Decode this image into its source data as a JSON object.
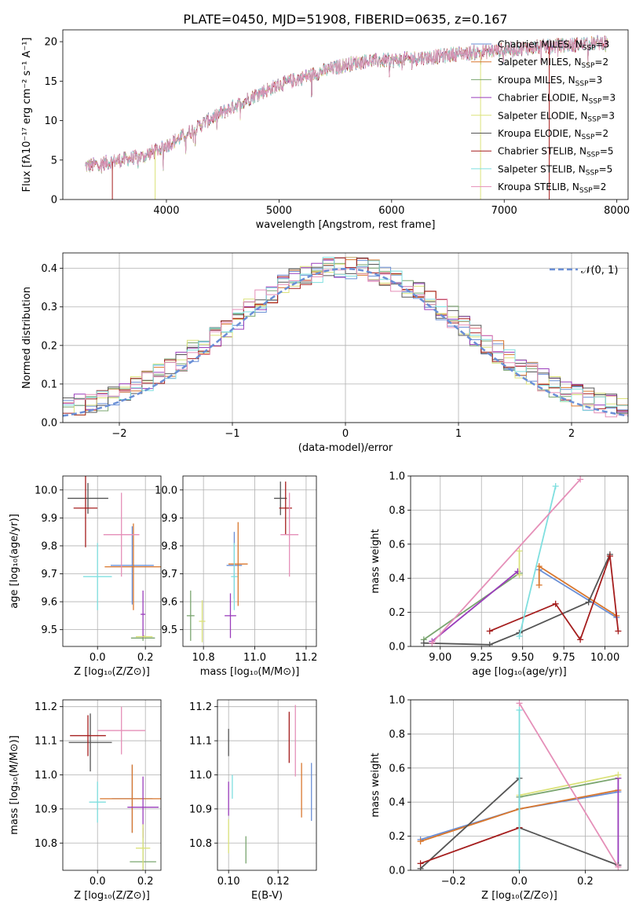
{
  "figure_title": "PLATE=0450, MJD=51908, FIBERID=0635, z=0.167",
  "colors": [
    "#6a8fd6",
    "#d9772d",
    "#7aa56f",
    "#9a3dbb",
    "#dbe27a",
    "#555555",
    "#a51e1e",
    "#7fdfdf",
    "#e58fb8"
  ],
  "chart_data": [
    {
      "type": "line",
      "panel": "spectrum",
      "title": "PLATE=0450, MJD=51908, FIBERID=0635, z=0.167",
      "xlabel": "wavelength [Angstrom, rest frame]",
      "ylabel": "Flux [fλ10⁻¹⁷ erg cm⁻² s⁻¹ A⁻¹]",
      "xlim": [
        3080,
        8100
      ],
      "ylim": [
        0,
        21.5
      ],
      "xticks": [
        4000,
        5000,
        6000,
        7000,
        8000
      ],
      "yticks": [
        0,
        5,
        10,
        15,
        20
      ],
      "grid": false,
      "legend_position": "top-right",
      "continuum": [
        [
          3280,
          4.2
        ],
        [
          3400,
          4.5
        ],
        [
          3600,
          5.0
        ],
        [
          3800,
          5.5
        ],
        [
          4000,
          6.8
        ],
        [
          4200,
          8.5
        ],
        [
          4400,
          10.3
        ],
        [
          4600,
          11.8
        ],
        [
          4800,
          13.3
        ],
        [
          5000,
          14.5
        ],
        [
          5200,
          15.4
        ],
        [
          5400,
          16.3
        ],
        [
          5600,
          17.1
        ],
        [
          5800,
          17.6
        ],
        [
          6000,
          17.6
        ],
        [
          6200,
          17.9
        ],
        [
          6400,
          18.1
        ],
        [
          6600,
          18.5
        ],
        [
          6800,
          18.7
        ],
        [
          7000,
          19.0
        ],
        [
          7200,
          19.2
        ],
        [
          7400,
          19.4
        ],
        [
          7600,
          19.6
        ],
        [
          7800,
          19.8
        ],
        [
          7920,
          20.0
        ]
      ],
      "series": [
        {
          "name": "Chabrier MILES, N_SSP=3"
        },
        {
          "name": "Salpeter MILES, N_SSP=2"
        },
        {
          "name": "Kroupa MILES, N_SSP=3"
        },
        {
          "name": "Chabrier ELODIE, N_SSP=3"
        },
        {
          "name": "Salpeter ELODIE, N_SSP=3"
        },
        {
          "name": "Kroupa ELODIE, N_SSP=2"
        },
        {
          "name": "Chabrier STELIB, N_SSP=5"
        },
        {
          "name": "Salpeter STELIB, N_SSP=5"
        },
        {
          "name": "Kroupa STELIB, N_SSP=2"
        }
      ]
    },
    {
      "type": "line",
      "panel": "residuals",
      "xlabel": "(data-model)/error",
      "ylabel": "Normed distribution",
      "xlim": [
        -2.5,
        2.5
      ],
      "ylim": [
        0,
        0.44
      ],
      "xticks": [
        -2,
        -1,
        0,
        1,
        2
      ],
      "yticks": [
        0.0,
        0.1,
        0.2,
        0.3,
        0.4
      ],
      "grid": true,
      "legend": {
        "name": "𝒩(0, 1)",
        "position": "top-right"
      }
    },
    {
      "type": "scatter",
      "panel": "age_vs_Z",
      "xlabel": "Z [log₁₀(Z/Z⊙)]",
      "ylabel": "age  [log₁₀(age/yr)]",
      "xlim": [
        -0.145,
        0.265
      ],
      "ylim": [
        9.44,
        10.05
      ],
      "xticks": [
        -0.0,
        0.2
      ],
      "yticks": [
        9.5,
        9.6,
        9.7,
        9.8,
        9.9,
        10.0
      ],
      "grid": true,
      "points": [
        {
          "x": 0.145,
          "y": 9.73,
          "xerr": 0.18,
          "yerr": 0.14,
          "c": 0
        },
        {
          "x": 0.15,
          "y": 9.725,
          "xerr": 0.24,
          "yerr": 0.155,
          "c": 1
        },
        {
          "x": 0.19,
          "y": 9.47,
          "xerr": 0.1,
          "yerr": 0.01,
          "c": 2
        },
        {
          "x": 0.19,
          "y": 9.555,
          "xerr": 0.02,
          "yerr": 0.085,
          "c": 3
        },
        {
          "x": 0.195,
          "y": 9.475,
          "xerr": 0.07,
          "yerr": 0.005,
          "c": 4
        },
        {
          "x": -0.04,
          "y": 9.97,
          "xerr": 0.17,
          "yerr": 0.055,
          "c": 5
        },
        {
          "x": -0.05,
          "y": 9.935,
          "xerr": 0.1,
          "yerr": 0.14,
          "c": 6
        },
        {
          "x": 0.0,
          "y": 9.69,
          "xerr": 0.12,
          "yerr": 0.12,
          "c": 7
        },
        {
          "x": 0.1,
          "y": 9.84,
          "xerr": 0.15,
          "yerr": 0.15,
          "c": 8
        }
      ]
    },
    {
      "type": "scatter",
      "panel": "age_vs_mass",
      "xlabel": "mass [log₁₀(M/M⊙)]",
      "ylabel": "",
      "xlim": [
        10.72,
        11.24
      ],
      "ylim": [
        9.44,
        10.05
      ],
      "xticks": [
        10.8,
        11.0,
        11.2
      ],
      "yticks": [
        9.5,
        9.6,
        9.7,
        9.8,
        9.9,
        10.0
      ],
      "grid": true,
      "points": [
        {
          "x": 10.92,
          "y": 9.73,
          "xerr": 0.06,
          "yerr": 0.12,
          "c": 0
        },
        {
          "x": 10.935,
          "y": 9.735,
          "xerr": 0.075,
          "yerr": 0.15,
          "c": 1
        },
        {
          "x": 10.75,
          "y": 9.55,
          "xerr": 0.03,
          "yerr": 0.09,
          "c": 2
        },
        {
          "x": 10.905,
          "y": 9.55,
          "xerr": 0.045,
          "yerr": 0.08,
          "c": 3
        },
        {
          "x": 10.795,
          "y": 9.53,
          "xerr": 0.025,
          "yerr": 0.075,
          "c": 4
        },
        {
          "x": 11.1,
          "y": 9.97,
          "xerr": 0.05,
          "yerr": 0.06,
          "c": 5
        },
        {
          "x": 11.12,
          "y": 9.935,
          "xerr": 0.05,
          "yerr": 0.095,
          "c": 6
        },
        {
          "x": 10.92,
          "y": 9.69,
          "xerr": 0.025,
          "yerr": 0.12,
          "c": 7
        },
        {
          "x": 11.135,
          "y": 9.84,
          "xerr": 0.07,
          "yerr": 0.15,
          "c": 8
        }
      ]
    },
    {
      "type": "line",
      "panel": "massweight_vs_age",
      "xlabel": "age  [log₁₀(age/yr)]",
      "ylabel": "mass weight",
      "xlim": [
        8.82,
        10.14
      ],
      "ylim": [
        0,
        1.0
      ],
      "xticks": [
        9.0,
        9.25,
        9.5,
        9.75,
        10.0
      ],
      "yticks": [
        0.0,
        0.2,
        0.4,
        0.6,
        0.8,
        1.0
      ],
      "grid": true,
      "series": [
        {
          "c": 0,
          "points": [
            [
              9.6,
              0.45
            ],
            [
              10.07,
              0.17
            ]
          ]
        },
        {
          "c": 1,
          "points": [
            [
              9.6,
              0.36
            ],
            [
              9.6,
              0.47
            ],
            [
              10.07,
              0.18
            ]
          ]
        },
        {
          "c": 2,
          "points": [
            [
              8.9,
              0.04
            ],
            [
              9.48,
              0.43
            ]
          ]
        },
        {
          "c": 3,
          "points": [
            [
              8.95,
              0.03
            ],
            [
              9.47,
              0.44
            ]
          ]
        },
        {
          "c": 4,
          "points": [
            [
              9.48,
              0.42
            ],
            [
              9.48,
              0.56
            ]
          ]
        },
        {
          "c": 5,
          "points": [
            [
              8.9,
              0.02
            ],
            [
              9.3,
              0.01
            ],
            [
              9.48,
              0.08
            ],
            [
              9.9,
              0.26
            ],
            [
              10.03,
              0.54
            ]
          ]
        },
        {
          "c": 6,
          "points": [
            [
              9.3,
              0.09
            ],
            [
              9.7,
              0.25
            ],
            [
              9.85,
              0.04
            ],
            [
              10.03,
              0.53
            ],
            [
              10.08,
              0.09
            ]
          ]
        },
        {
          "c": 7,
          "points": [
            [
              9.48,
              0.06
            ],
            [
              9.7,
              0.94
            ]
          ]
        },
        {
          "c": 8,
          "points": [
            [
              8.95,
              0.02
            ],
            [
              9.85,
              0.98
            ]
          ]
        }
      ]
    },
    {
      "type": "scatter",
      "panel": "mass_vs_Z",
      "xlabel": "Z [log₁₀(Z/Z⊙)]",
      "ylabel": "mass [log₁₀(M/M⊙)]",
      "xlim": [
        -0.145,
        0.265
      ],
      "ylim": [
        10.72,
        11.22
      ],
      "xticks": [
        0.0,
        0.2
      ],
      "yticks": [
        10.8,
        10.9,
        11.0,
        11.1,
        11.2
      ],
      "grid": true,
      "points": [
        {
          "x": 0.145,
          "y": 10.93,
          "xerr": 0.17,
          "yerr": 0.1,
          "c": 0
        },
        {
          "x": 0.145,
          "y": 10.93,
          "xerr": 0.27,
          "yerr": 0.1,
          "c": 1
        },
        {
          "x": 0.19,
          "y": 10.745,
          "xerr": 0.11,
          "yerr": 0.1,
          "c": 2
        },
        {
          "x": 0.19,
          "y": 10.905,
          "xerr": 0.13,
          "yerr": 0.09,
          "c": 3
        },
        {
          "x": 0.19,
          "y": 10.785,
          "xerr": 0.06,
          "yerr": 0.07,
          "c": 4
        },
        {
          "x": -0.03,
          "y": 11.095,
          "xerr": 0.18,
          "yerr": 0.085,
          "c": 5
        },
        {
          "x": -0.04,
          "y": 11.115,
          "xerr": 0.15,
          "yerr": 0.06,
          "c": 6
        },
        {
          "x": 0.0,
          "y": 10.92,
          "xerr": 0.07,
          "yerr": 0.06,
          "c": 7
        },
        {
          "x": 0.1,
          "y": 11.13,
          "xerr": 0.2,
          "yerr": 0.07,
          "c": 8
        }
      ]
    },
    {
      "type": "scatter",
      "panel": "mass_vs_EBV",
      "xlabel": "E(B-V)",
      "ylabel": "",
      "xlim": [
        0.0955,
        0.1355
      ],
      "ylim": [
        10.72,
        11.22
      ],
      "xticks": [
        0.1,
        0.12
      ],
      "yticks": [
        10.8,
        10.9,
        11.0,
        11.1,
        11.2
      ],
      "grid": true,
      "points": [
        {
          "x": 0.1335,
          "y": 10.95,
          "xerr": 0,
          "yerr": 0.085,
          "c": 0
        },
        {
          "x": 0.1295,
          "y": 10.955,
          "xerr": 0,
          "yerr": 0.08,
          "c": 1
        },
        {
          "x": 0.107,
          "y": 10.78,
          "xerr": 0,
          "yerr": 0.04,
          "c": 2
        },
        {
          "x": 0.1,
          "y": 10.93,
          "xerr": 0,
          "yerr": 0.05,
          "c": 3
        },
        {
          "x": 0.1,
          "y": 10.82,
          "xerr": 0,
          "yerr": 0.05,
          "c": 4
        },
        {
          "x": 0.1,
          "y": 11.095,
          "xerr": 0,
          "yerr": 0.04,
          "c": 5
        },
        {
          "x": 0.1245,
          "y": 11.11,
          "xerr": 0,
          "yerr": 0.075,
          "c": 6
        },
        {
          "x": 0.1015,
          "y": 10.965,
          "xerr": 0,
          "yerr": 0.035,
          "c": 7
        },
        {
          "x": 0.127,
          "y": 11.1,
          "xerr": 0,
          "yerr": 0.105,
          "c": 8
        }
      ]
    },
    {
      "type": "line",
      "panel": "massweight_vs_Z",
      "xlabel": "Z [log₁₀(Z/Z⊙)]",
      "ylabel": "mass weight",
      "xlim": [
        -0.33,
        0.33
      ],
      "ylim": [
        0,
        1.0
      ],
      "xticks": [
        -0.2,
        0.0,
        0.2
      ],
      "yticks": [
        0.0,
        0.2,
        0.4,
        0.6,
        0.8,
        1.0
      ],
      "grid": true,
      "series": [
        {
          "c": 0,
          "points": [
            [
              -0.3,
              0.18
            ],
            [
              0.0,
              0.36
            ],
            [
              0.3,
              0.46
            ]
          ]
        },
        {
          "c": 1,
          "points": [
            [
              -0.3,
              0.17
            ],
            [
              0.0,
              0.36
            ],
            [
              0.3,
              0.47
            ]
          ]
        },
        {
          "c": 2,
          "points": [
            [
              0.0,
              0.43
            ],
            [
              0.3,
              0.54
            ]
          ]
        },
        {
          "c": 3,
          "points": [
            [
              0.3,
              0.03
            ],
            [
              0.3,
              0.54
            ]
          ]
        },
        {
          "c": 4,
          "points": [
            [
              0.0,
              0.44
            ],
            [
              0.3,
              0.56
            ]
          ]
        },
        {
          "c": 5,
          "points": [
            [
              -0.3,
              0.01
            ],
            [
              0.0,
              0.54
            ],
            [
              0.0,
              0.25
            ],
            [
              0.3,
              0.03
            ]
          ]
        },
        {
          "c": 6,
          "points": [
            [
              -0.3,
              0.04
            ],
            [
              0.0,
              0.25
            ]
          ]
        },
        {
          "c": 7,
          "points": [
            [
              0.0,
              0.0
            ],
            [
              0.0,
              0.94
            ]
          ]
        },
        {
          "c": 8,
          "points": [
            [
              0.0,
              0.98
            ],
            [
              0.3,
              0.02
            ]
          ]
        }
      ]
    }
  ]
}
